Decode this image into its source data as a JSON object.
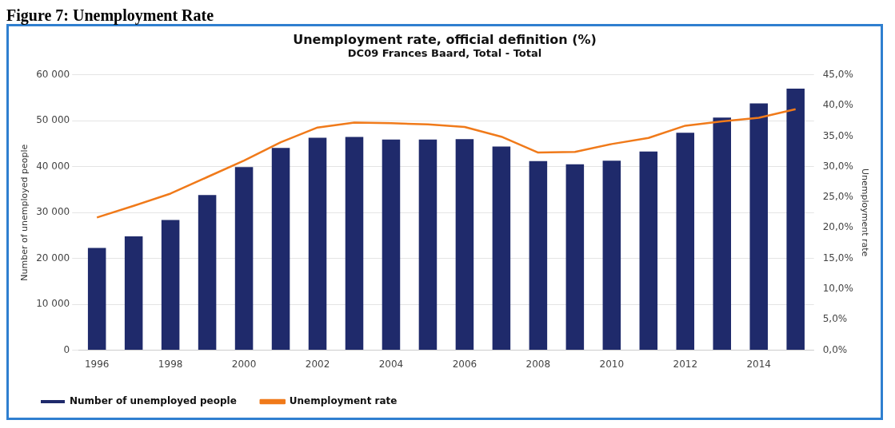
{
  "chart_data": {
    "type": "bar",
    "title": "Unemployment rate, official definition (%)",
    "subtitle": "DC09 Frances Baard, Total - Total",
    "annotations": [
      "Figure 7: Unemployment Rate"
    ],
    "ylabel": "Number of unemployed people",
    "y2label": "Unemployment rate",
    "categories": [
      "1996",
      null,
      "1998",
      null,
      "2000",
      null,
      "2002",
      null,
      "2004",
      null,
      "2006",
      null,
      "2008",
      null,
      "2010",
      null,
      "2012",
      null,
      "2014",
      null
    ],
    "series": [
      {
        "name": "Number of unemployed people",
        "color": "#1f2a6b",
        "values": [
          22300,
          24800,
          28400,
          33800,
          39900,
          44100,
          46300,
          46500,
          45900,
          45900,
          46000,
          44400,
          41200,
          40500,
          41300,
          43300,
          47400,
          50700,
          53800,
          57000
        ]
      },
      {
        "name": "Unemployment rate",
        "type": "line",
        "axis": "y2",
        "color": "#f07a1a",
        "marker": "none",
        "values": [
          21.7,
          23.6,
          25.6,
          28.3,
          31.0,
          34.0,
          36.4,
          37.2,
          37.1,
          36.9,
          36.5,
          34.9,
          32.3,
          32.4,
          33.7,
          34.7,
          36.7,
          37.4,
          38.0,
          39.4
        ]
      }
    ],
    "ylim": [
      0,
      60000
    ],
    "yticks": [
      {
        "value": 0,
        "label": "0"
      },
      {
        "value": 10000,
        "label": "10 000"
      },
      {
        "value": 20000,
        "label": "20 000"
      },
      {
        "value": 30000,
        "label": "30 000"
      },
      {
        "value": 40000,
        "label": "40 000"
      },
      {
        "value": 50000,
        "label": "50 000"
      },
      {
        "value": 60000,
        "label": "60 000"
      }
    ],
    "y2lim": [
      0,
      45
    ],
    "y2ticks": [
      {
        "value": 0,
        "label": "0,0%"
      },
      {
        "value": 5,
        "label": "5,0%"
      },
      {
        "value": 10,
        "label": "10,0%"
      },
      {
        "value": 15,
        "label": "15,0%"
      },
      {
        "value": 20,
        "label": "20,0%"
      },
      {
        "value": 25,
        "label": "25,0%"
      },
      {
        "value": 30,
        "label": "30,0%"
      },
      {
        "value": 35,
        "label": "35,0%"
      },
      {
        "value": 40,
        "label": "40,0%"
      },
      {
        "value": 45,
        "label": "45,0%"
      }
    ],
    "grid": "y",
    "legend": "bottom left"
  }
}
